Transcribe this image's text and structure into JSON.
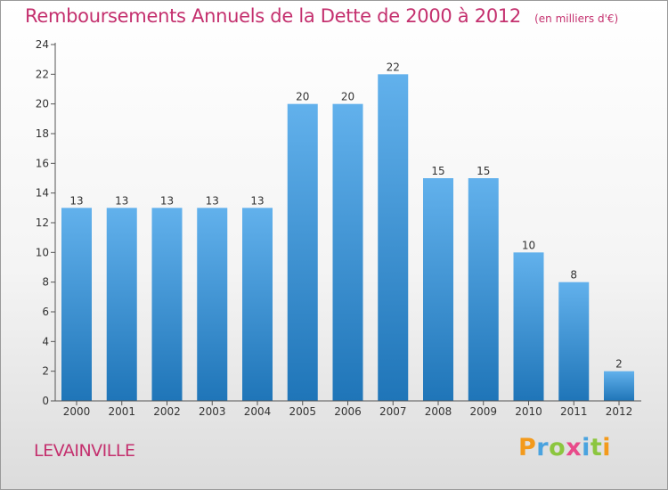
{
  "title": "Remboursements Annuels de la Dette de 2000 à 2012",
  "subtitle": "(en milliers d'€)",
  "commune": "LEVAINVILLE",
  "brand": "Proxiti",
  "colors": {
    "bar_light": "#62b1ec",
    "bar_dark": "#1f75b8",
    "title": "#c4306e"
  },
  "chart_data": {
    "type": "bar",
    "categories": [
      "2000",
      "2001",
      "2002",
      "2003",
      "2004",
      "2005",
      "2006",
      "2007",
      "2008",
      "2009",
      "2010",
      "2011",
      "2012"
    ],
    "values": [
      13,
      13,
      13,
      13,
      13,
      20,
      20,
      22,
      15,
      15,
      10,
      8,
      2
    ],
    "ylim": [
      0,
      24
    ],
    "yticks": [
      0,
      2,
      4,
      6,
      8,
      10,
      12,
      14,
      16,
      18,
      20,
      22,
      24
    ],
    "grid": false,
    "legend": "none"
  }
}
